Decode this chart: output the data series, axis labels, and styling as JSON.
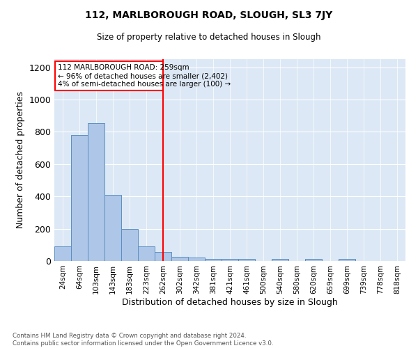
{
  "title": "112, MARLBOROUGH ROAD, SLOUGH, SL3 7JY",
  "subtitle": "Size of property relative to detached houses in Slough",
  "xlabel": "Distribution of detached houses by size in Slough",
  "ylabel": "Number of detached properties",
  "background_color": "#dce8f5",
  "bar_color": "#aec6e8",
  "bar_edge_color": "#5a8fc0",
  "categories": [
    "24sqm",
    "64sqm",
    "103sqm",
    "143sqm",
    "183sqm",
    "223sqm",
    "262sqm",
    "302sqm",
    "342sqm",
    "381sqm",
    "421sqm",
    "461sqm",
    "500sqm",
    "540sqm",
    "580sqm",
    "620sqm",
    "659sqm",
    "699sqm",
    "739sqm",
    "778sqm",
    "818sqm"
  ],
  "values": [
    90,
    780,
    855,
    410,
    200,
    90,
    55,
    25,
    20,
    12,
    12,
    12,
    0,
    15,
    0,
    12,
    0,
    15,
    0,
    0,
    0
  ],
  "vline_x": 6,
  "annotation_title": "112 MARLBOROUGH ROAD: 259sqm",
  "annotation_line1": "← 96% of detached houses are smaller (2,402)",
  "annotation_line2": "4% of semi-detached houses are larger (100) →",
  "ylim": [
    0,
    1250
  ],
  "yticks": [
    0,
    200,
    400,
    600,
    800,
    1000,
    1200
  ],
  "footer_line1": "Contains HM Land Registry data © Crown copyright and database right 2024.",
  "footer_line2": "Contains public sector information licensed under the Open Government Licence v3.0."
}
